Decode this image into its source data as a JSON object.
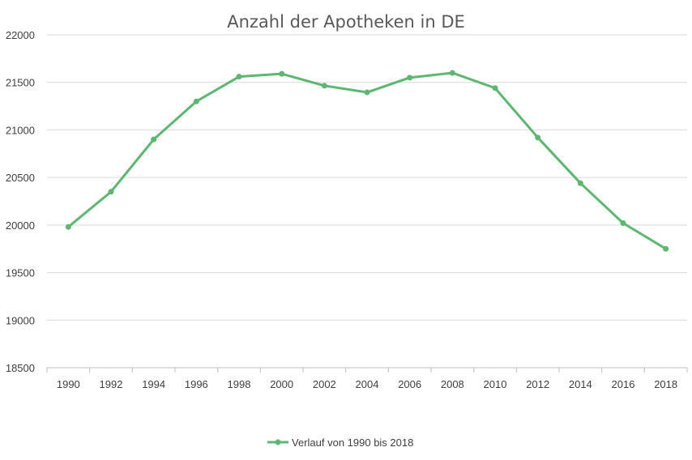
{
  "chart_data": {
    "type": "line",
    "title": "Anzahl der Apotheken in DE",
    "xlabel": "",
    "ylabel": "",
    "ylim": [
      18500,
      22000
    ],
    "ytick_step": 500,
    "grid": true,
    "legend_position": "bottom",
    "categories": [
      "1990",
      "1992",
      "1994",
      "1996",
      "1998",
      "2000",
      "2002",
      "2004",
      "2006",
      "2008",
      "2010",
      "2012",
      "2014",
      "2016",
      "2018"
    ],
    "series": [
      {
        "name": "Verlauf von 1990 bis 2018",
        "color": "#5cb870",
        "values": [
          19980,
          20350,
          20900,
          21300,
          21560,
          21590,
          21465,
          21395,
          21550,
          21600,
          21440,
          20920,
          20440,
          20020,
          19750
        ]
      }
    ]
  }
}
